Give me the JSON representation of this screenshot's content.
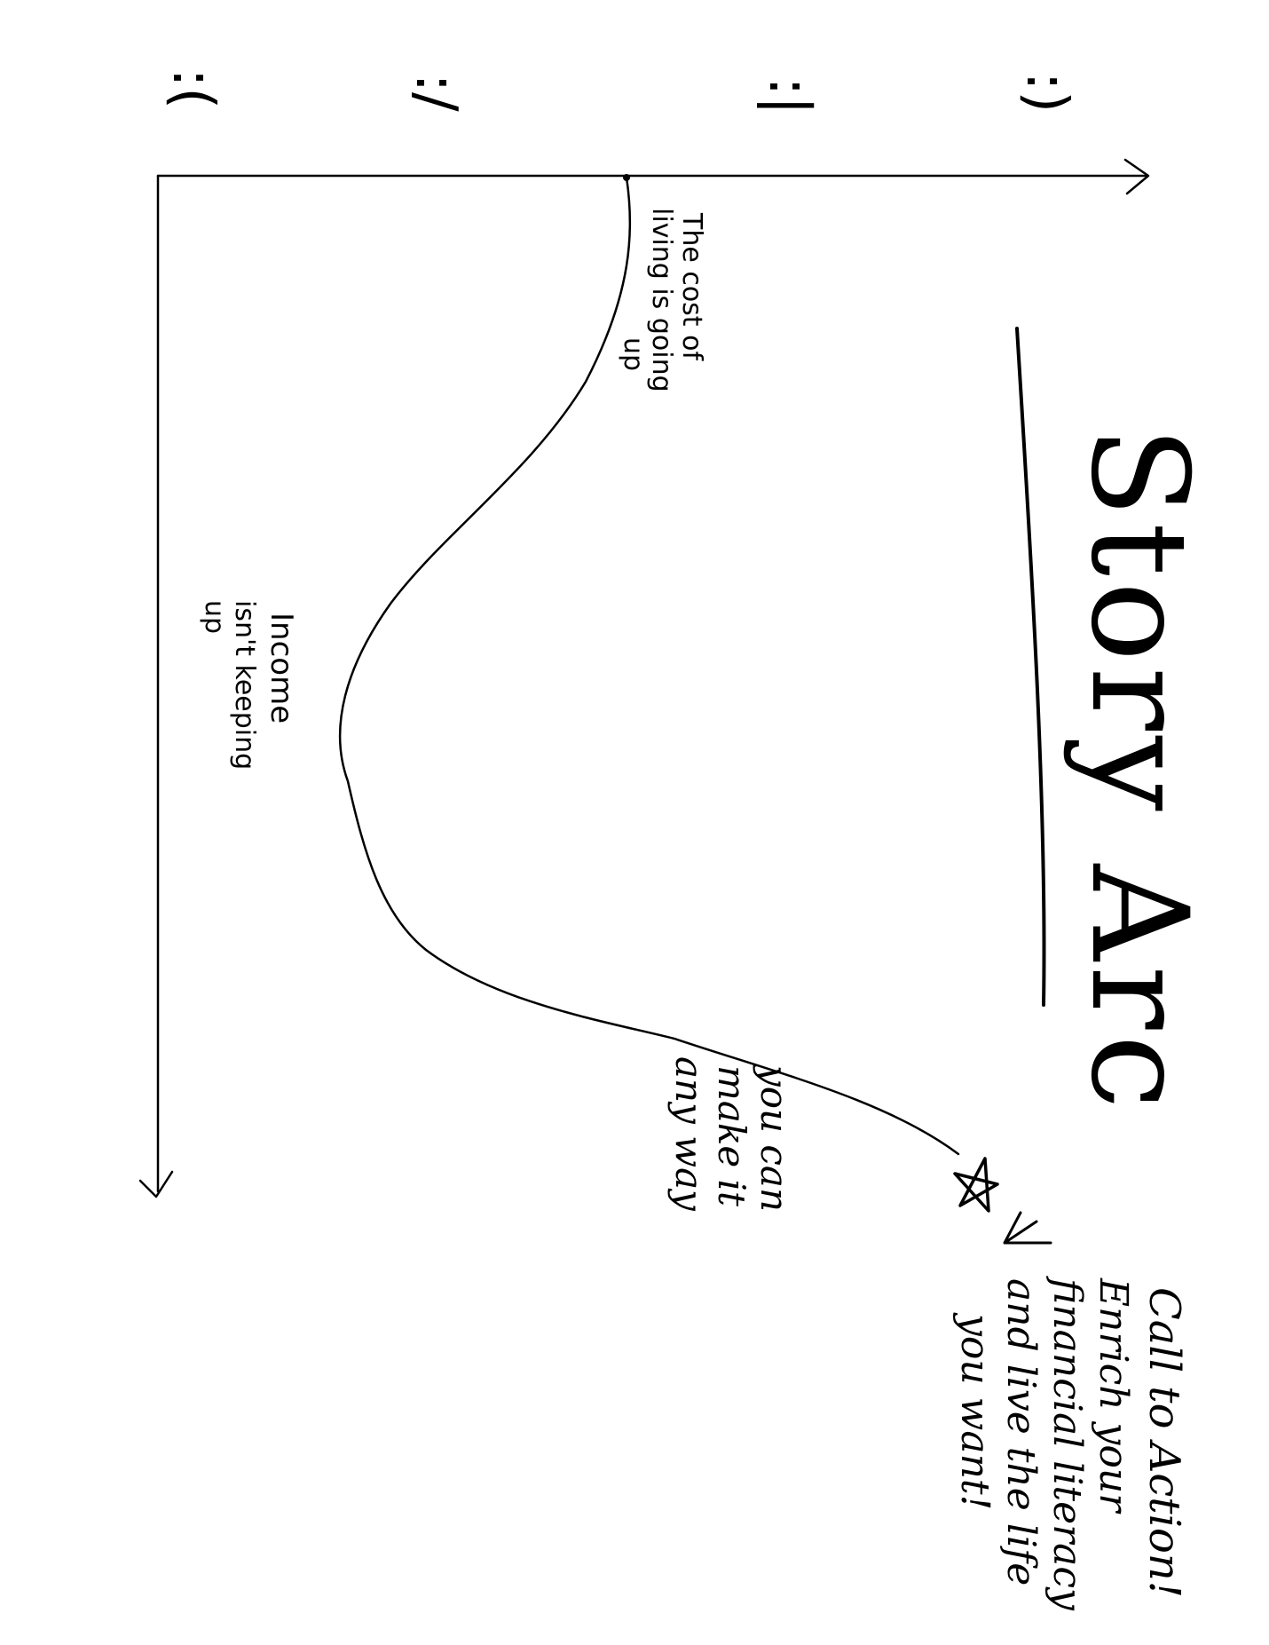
{
  "title": "Story Arc",
  "y_axis_faces": [
    {
      "icon": "happy-face-icon",
      "glyph": ":)"
    },
    {
      "icon": "neutral-face-icon",
      "glyph": ":|"
    },
    {
      "icon": "skeptical-face-icon",
      "glyph": ":/"
    },
    {
      "icon": "sad-face-icon",
      "glyph": ":("
    }
  ],
  "annotations": {
    "cost_of_living": [
      "The cost of",
      "living is going",
      "up"
    ],
    "income": [
      "Income",
      "isn't keeping",
      "up"
    ],
    "make_it": [
      "you can",
      "make it",
      "any way"
    ],
    "call_to_action": [
      "Call to Action!",
      "Enrich your",
      "financial literacy",
      "and live the life",
      "you want!"
    ]
  },
  "colors": {
    "ink": "#000000",
    "paper": "#ffffff"
  }
}
